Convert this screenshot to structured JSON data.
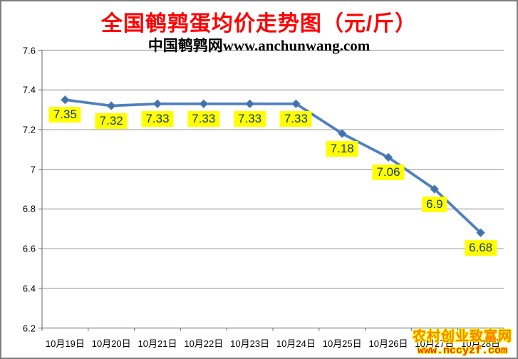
{
  "title": "全国鹌鹑蛋均价走势图（元/斤）",
  "subtitle": "中国鹌鹑网www.anchunwang.com",
  "watermark": {
    "line1": "农村创业致富网",
    "line2": "www.nccyzf.com"
  },
  "colors": {
    "title": "#FF0000",
    "line": "#4F81BD",
    "marker": "#4472A8",
    "data_label_bg": "#FFFF00",
    "data_label_text": "#17375E",
    "gridline": "#A6A6A6",
    "axis": "#808080",
    "watermark_line1": "#FF7F00",
    "watermark_line2": "#FF2A00",
    "watermark_outline": "#FFFF00"
  },
  "chart_data": {
    "type": "line",
    "title": "全国鹌鹑蛋均价走势图（元/斤）",
    "subtitle": "中国鹌鹑网www.anchunwang.com",
    "categories": [
      "10月19日",
      "10月20日",
      "10月21日",
      "10月22日",
      "10月23日",
      "10月24日",
      "10月25日",
      "10月26日",
      "10月27日",
      "10月28日"
    ],
    "values": [
      7.35,
      7.32,
      7.33,
      7.33,
      7.33,
      7.33,
      7.18,
      7.06,
      6.9,
      6.68
    ],
    "point_labels": [
      "7.35",
      "7.32",
      "7.33",
      "7.33",
      "7.33",
      "7.33",
      "7.18",
      "7.06",
      "6.9",
      "6.68"
    ],
    "xlabel": "",
    "ylabel": "",
    "ylim": [
      6.2,
      7.6
    ],
    "ytick_labels": [
      "7.6",
      "7.4",
      "7.2",
      "7",
      "6.8",
      "6.6",
      "6.4",
      "6.2"
    ],
    "grid": true,
    "legend": false,
    "marker": "diamond"
  }
}
